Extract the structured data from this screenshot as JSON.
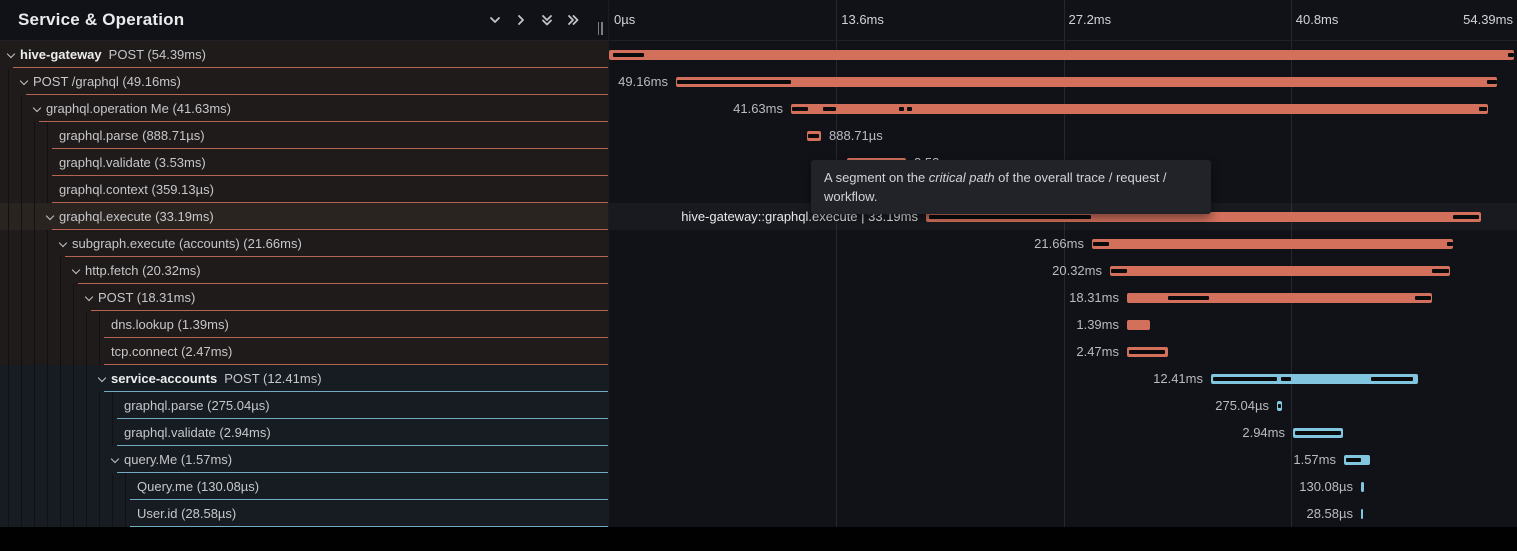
{
  "header": {
    "title": "Service & Operation",
    "icons": [
      "chevron-down-icon",
      "chevron-right-icon",
      "double-chevron-down-icon",
      "double-chevron-right-icon"
    ]
  },
  "timeline": {
    "ticks": [
      {
        "label": "0µs",
        "pos": 0
      },
      {
        "label": "13.6ms",
        "pos": 25
      },
      {
        "label": "27.2ms",
        "pos": 50
      },
      {
        "label": "40.8ms",
        "pos": 75
      },
      {
        "label": "54.39ms",
        "pos": 100
      }
    ]
  },
  "colors": {
    "salmon": "#d2705c",
    "blue": "#82c5de",
    "critical": "#0a0b0d"
  },
  "tooltip": {
    "text_before": "A segment on the ",
    "text_italic": "critical path",
    "text_after": " of the overall trace / request / workflow."
  },
  "hover_label": "hive-gateway::graphql.execute | 33.19ms",
  "spans": [
    {
      "service": "hive-gateway",
      "operation": "POST",
      "duration": "54.39ms",
      "level": 0,
      "chevron": true,
      "color": "salmon",
      "bar": [
        0,
        905
      ],
      "critical": [
        [
          4,
          35
        ],
        [
          899,
          905
        ]
      ],
      "label_side": "none",
      "hovered": false
    },
    {
      "service": null,
      "operation": "POST /graphql",
      "duration": "49.16ms",
      "level": 1,
      "chevron": true,
      "color": "salmon",
      "bar": [
        67,
        888
      ],
      "critical": [
        [
          68,
          182
        ],
        [
          878,
          888
        ]
      ],
      "label_side": "left",
      "hovered": false
    },
    {
      "service": null,
      "operation": "graphql.operation Me",
      "duration": "41.63ms",
      "level": 2,
      "chevron": true,
      "color": "salmon",
      "bar": [
        182,
        879
      ],
      "critical": [
        [
          183,
          199
        ],
        [
          214,
          227
        ],
        [
          290,
          295
        ],
        [
          298,
          303
        ],
        [
          870,
          878
        ]
      ],
      "label_side": "left",
      "hovered": false
    },
    {
      "service": null,
      "operation": "graphql.parse",
      "duration": "888.71µs",
      "level": 3,
      "chevron": false,
      "color": "salmon",
      "bar": [
        198,
        212
      ],
      "critical": [
        [
          199,
          210
        ]
      ],
      "label_side": "right",
      "hovered": false
    },
    {
      "service": null,
      "operation": "graphql.validate",
      "duration": "3.53ms",
      "level": 3,
      "chevron": false,
      "color": "salmon",
      "bar": [
        238,
        297
      ],
      "critical": [
        [
          240,
          294
        ]
      ],
      "label_side": "right",
      "hovered": false
    },
    {
      "service": null,
      "operation": "graphql.context",
      "duration": "359.13µs",
      "level": 3,
      "chevron": false,
      "color": "salmon",
      "bar": [
        298,
        304
      ],
      "critical": [],
      "label_side": "right",
      "hovered": false
    },
    {
      "service": null,
      "operation": "graphql.execute",
      "duration": "33.19ms",
      "level": 3,
      "chevron": true,
      "color": "salmon",
      "bar": [
        317,
        872
      ],
      "critical": [
        [
          320,
          482
        ],
        [
          844,
          870
        ]
      ],
      "label_side": "hover",
      "hovered": true
    },
    {
      "service": null,
      "operation": "subgraph.execute (accounts)",
      "duration": "21.66ms",
      "level": 4,
      "chevron": true,
      "color": "salmon",
      "bar": [
        483,
        844
      ],
      "critical": [
        [
          484,
          500
        ],
        [
          838,
          844
        ]
      ],
      "label_side": "left",
      "hovered": false
    },
    {
      "service": null,
      "operation": "http.fetch",
      "duration": "20.32ms",
      "level": 5,
      "chevron": true,
      "color": "salmon",
      "bar": [
        501,
        841
      ],
      "critical": [
        [
          502,
          518
        ],
        [
          823,
          840
        ]
      ],
      "label_side": "left",
      "hovered": false
    },
    {
      "service": null,
      "operation": "POST",
      "duration": "18.31ms",
      "level": 6,
      "chevron": true,
      "color": "salmon",
      "bar": [
        518,
        823
      ],
      "critical": [
        [
          559,
          600
        ],
        [
          806,
          822
        ]
      ],
      "label_side": "left",
      "hovered": false
    },
    {
      "service": null,
      "operation": "dns.lookup",
      "duration": "1.39ms",
      "level": 7,
      "chevron": false,
      "color": "salmon",
      "bar": [
        518,
        541
      ],
      "critical": [],
      "label_side": "left",
      "hovered": false
    },
    {
      "service": null,
      "operation": "tcp.connect",
      "duration": "2.47ms",
      "level": 7,
      "chevron": false,
      "color": "salmon",
      "bar": [
        518,
        559
      ],
      "critical": [
        [
          520,
          556
        ]
      ],
      "label_side": "left",
      "hovered": false
    },
    {
      "service": "service-accounts",
      "operation": "POST",
      "duration": "12.41ms",
      "level": 7,
      "chevron": true,
      "color": "blue",
      "bar": [
        602,
        809
      ],
      "critical": [
        [
          604,
          668
        ],
        [
          672,
          682
        ],
        [
          762,
          804
        ]
      ],
      "label_side": "left",
      "hovered": false
    },
    {
      "service": null,
      "operation": "graphql.parse",
      "duration": "275.04µs",
      "level": 8,
      "chevron": false,
      "color": "blue",
      "bar": [
        668,
        673
      ],
      "critical": [
        [
          669,
          672
        ]
      ],
      "label_side": "left",
      "hovered": false
    },
    {
      "service": null,
      "operation": "graphql.validate",
      "duration": "2.94ms",
      "level": 8,
      "chevron": false,
      "color": "blue",
      "bar": [
        684,
        734
      ],
      "critical": [
        [
          686,
          732
        ]
      ],
      "label_side": "left",
      "hovered": false
    },
    {
      "service": null,
      "operation": "query.Me",
      "duration": "1.57ms",
      "level": 8,
      "chevron": true,
      "color": "blue",
      "bar": [
        735,
        761
      ],
      "critical": [
        [
          737,
          752
        ]
      ],
      "label_side": "left",
      "hovered": false
    },
    {
      "service": null,
      "operation": "Query.me",
      "duration": "130.08µs",
      "level": 9,
      "chevron": false,
      "color": "blue",
      "bar": [
        752,
        755
      ],
      "critical": [],
      "label_side": "left",
      "hovered": false
    },
    {
      "service": null,
      "operation": "User.id",
      "duration": "28.58µs",
      "level": 9,
      "chevron": false,
      "color": "blue",
      "bar": [
        752,
        754
      ],
      "critical": [],
      "label_side": "left",
      "hovered": false
    }
  ]
}
